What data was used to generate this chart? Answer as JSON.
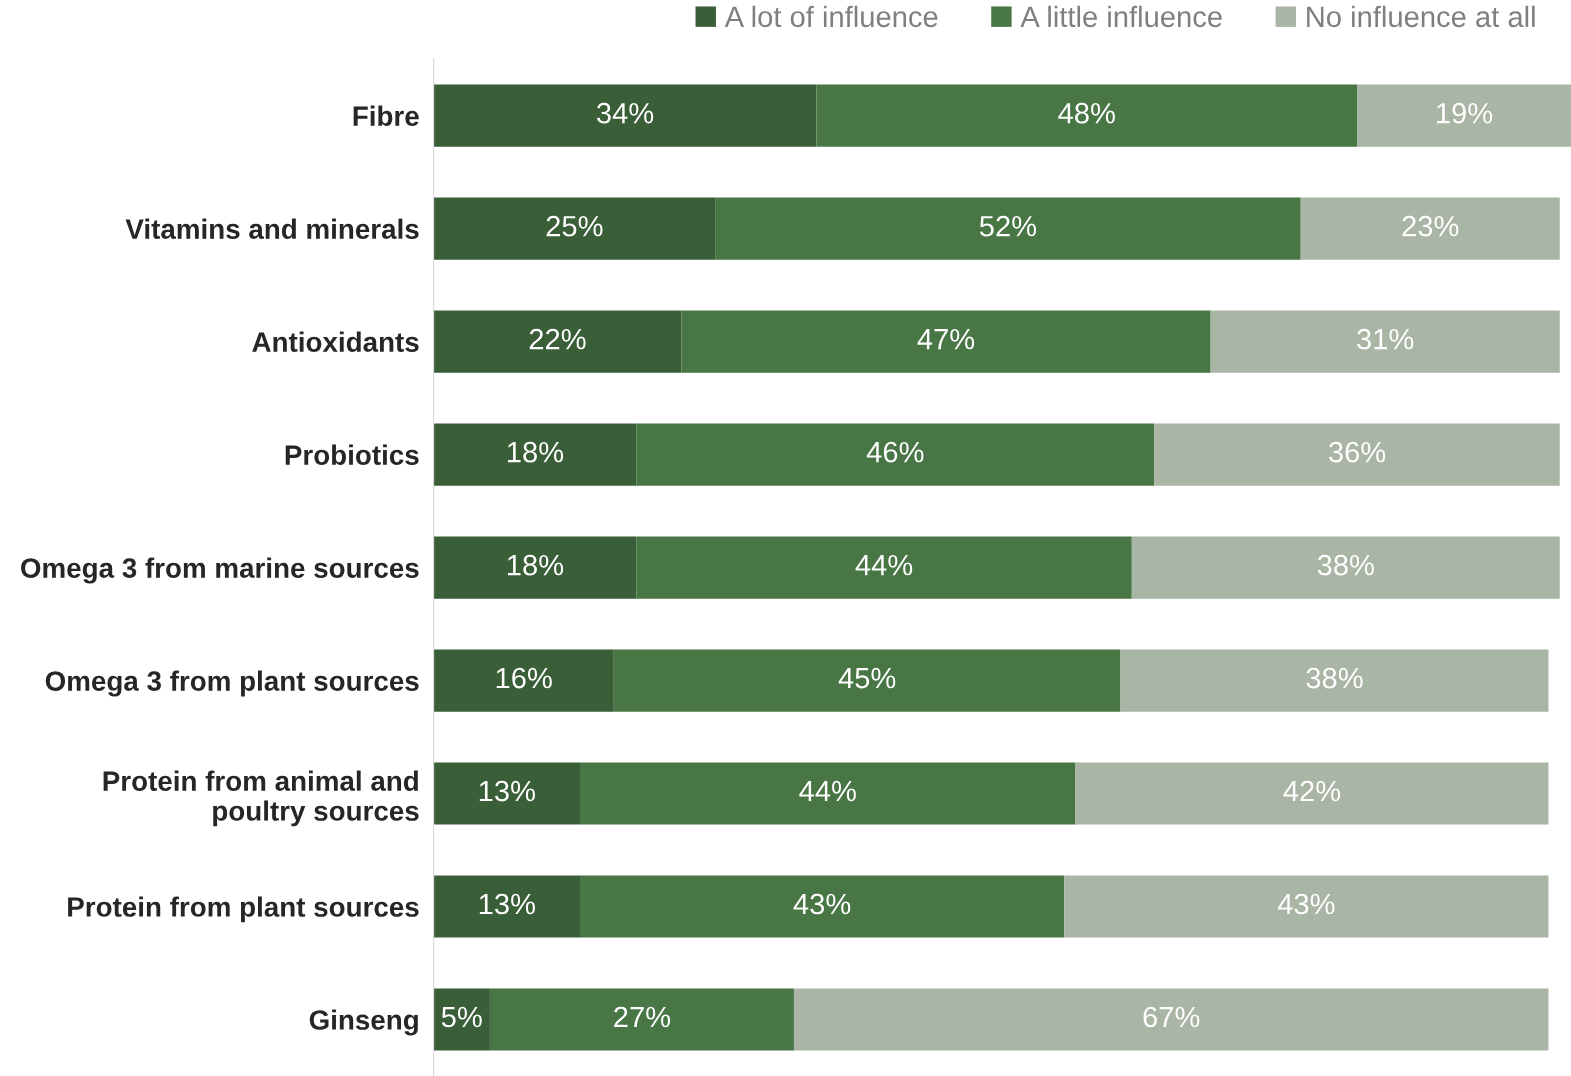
{
  "chart_data": {
    "type": "bar",
    "orientation": "horizontal",
    "stacked": true,
    "legend": "top",
    "tick_labels": "y",
    "grid": false,
    "xlim": [
      0,
      101
    ],
    "categories": [
      "Fibre",
      "Vitamins and minerals",
      "Antioxidants",
      "Probiotics",
      "Omega 3 from marine sources",
      "Omega 3 from plant sources",
      "Protein from animal and\npoultry sources",
      "Protein from plant sources",
      "Ginseng"
    ],
    "series": [
      {
        "name": "A lot of influence",
        "color": "#3a5e38",
        "values": [
          34,
          25,
          22,
          18,
          18,
          16,
          13,
          13,
          5
        ],
        "value_labels": [
          "34%",
          "25%",
          "22%",
          "18%",
          "18%",
          "16%",
          "13%",
          "13%",
          "5%"
        ]
      },
      {
        "name": "A little influence",
        "color": "#487645",
        "values": [
          48,
          52,
          47,
          46,
          44,
          45,
          44,
          43,
          27
        ],
        "value_labels": [
          "48%",
          "52%",
          "47%",
          "46%",
          "44%",
          "45%",
          "44%",
          "43%",
          "27%"
        ]
      },
      {
        "name": "No influence at all",
        "color": "#a9b5a5",
        "values": [
          19,
          23,
          31,
          36,
          38,
          38,
          42,
          43,
          67
        ],
        "value_labels": [
          "19%",
          "23%",
          "31%",
          "36%",
          "38%",
          "38%",
          "42%",
          "43%",
          "67%"
        ]
      }
    ]
  }
}
